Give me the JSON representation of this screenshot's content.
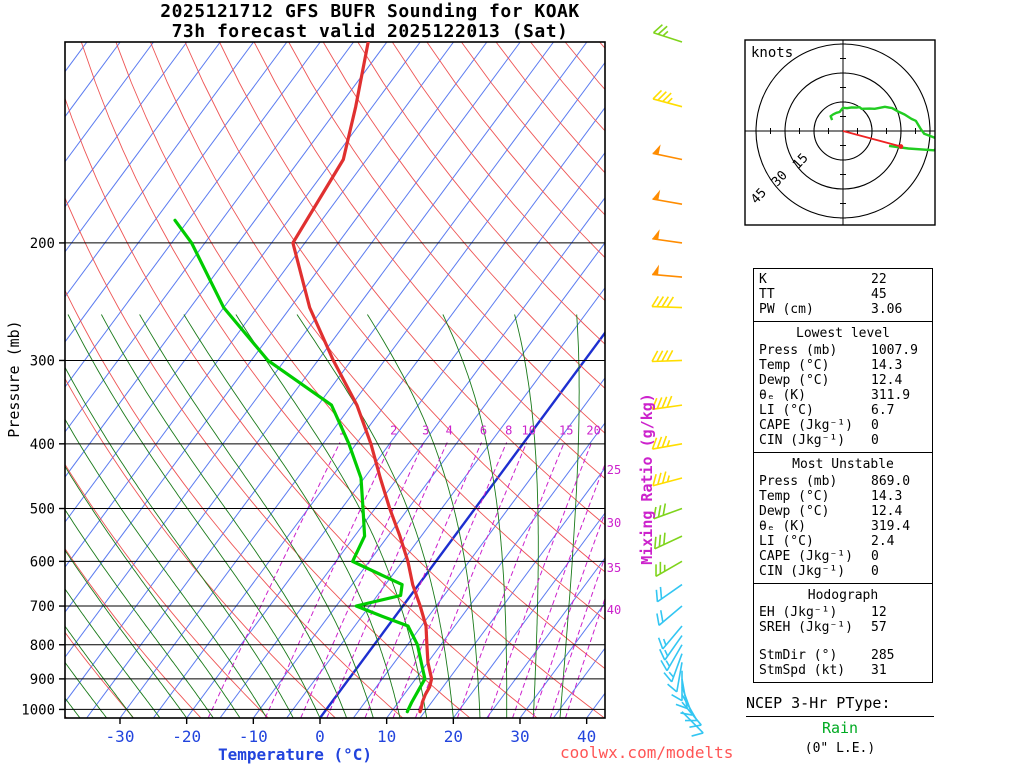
{
  "header": {
    "title_line1": "2025121712 GFS BUFR Sounding for KOAK",
    "title_line2": "73h forecast valid 2025122013 (Sat)"
  },
  "axes": {
    "pressure_label": "Pressure (mb)",
    "temperature_label": "Temperature (°C)",
    "mixing_ratio_label": "Mixing Ratio (g/kg)",
    "pressure_ticks": [
      200,
      300,
      400,
      500,
      600,
      700,
      800,
      900,
      1000
    ],
    "temperature_ticks": [
      -30,
      -20,
      -10,
      0,
      10,
      20,
      30,
      40
    ]
  },
  "chart_data": {
    "type": "line",
    "subtype": "skew-t-log-p",
    "title": "2025121712 GFS BUFR Sounding for KOAK, 73h forecast valid 2025122013 (Sat)",
    "xlabel": "Temperature (°C)",
    "ylabel": "Pressure (mb)",
    "pressure_range": [
      100,
      1030
    ],
    "isotherm_step_c": 5,
    "mixing_ratio_lines": [
      1,
      2,
      3,
      4,
      6,
      8,
      10,
      15,
      20,
      25,
      30,
      35,
      40
    ],
    "series": [
      {
        "name": "temperature",
        "color": "#e03030",
        "points": [
          [
            1008,
            14.3
          ],
          [
            1000,
            14.2
          ],
          [
            975,
            13.6
          ],
          [
            950,
            13.2
          ],
          [
            925,
            13.0
          ],
          [
            900,
            12.4
          ],
          [
            850,
            10.0
          ],
          [
            800,
            7.9
          ],
          [
            750,
            5.7
          ],
          [
            700,
            2.6
          ],
          [
            650,
            -0.9
          ],
          [
            600,
            -4.2
          ],
          [
            550,
            -8.2
          ],
          [
            500,
            -12.8
          ],
          [
            450,
            -17.6
          ],
          [
            400,
            -22.8
          ],
          [
            350,
            -29.2
          ],
          [
            300,
            -37.7
          ],
          [
            250,
            -47.1
          ],
          [
            200,
            -56.8
          ],
          [
            150,
            -58.5
          ],
          [
            125,
            -62.5
          ],
          [
            100,
            -67.8
          ]
        ]
      },
      {
        "name": "dewpoint",
        "color": "#00cc00",
        "points": [
          [
            1008,
            12.4
          ],
          [
            1000,
            12.3
          ],
          [
            975,
            12.0
          ],
          [
            950,
            11.8
          ],
          [
            925,
            11.6
          ],
          [
            900,
            11.4
          ],
          [
            850,
            9.0
          ],
          [
            800,
            6.5
          ],
          [
            750,
            3.0
          ],
          [
            725,
            -2.0
          ],
          [
            700,
            -7.0
          ],
          [
            675,
            -1.5
          ],
          [
            650,
            -2.5
          ],
          [
            600,
            -12.5
          ],
          [
            550,
            -13.5
          ],
          [
            500,
            -16.8
          ],
          [
            450,
            -20.5
          ],
          [
            400,
            -26.1
          ],
          [
            350,
            -33.0
          ],
          [
            300,
            -47.5
          ],
          [
            250,
            -60.0
          ],
          [
            200,
            -72.0
          ],
          [
            185,
            -77.0
          ]
        ]
      }
    ],
    "winds": {
      "barb_units": "knots",
      "levels": [
        [
          1008,
          135,
          8
        ],
        [
          975,
          140,
          10
        ],
        [
          950,
          150,
          10
        ],
        [
          925,
          160,
          10
        ],
        [
          900,
          170,
          10
        ],
        [
          875,
          180,
          12
        ],
        [
          850,
          190,
          12
        ],
        [
          825,
          200,
          13
        ],
        [
          800,
          210,
          14
        ],
        [
          775,
          215,
          15
        ],
        [
          750,
          220,
          15
        ],
        [
          700,
          230,
          18
        ],
        [
          650,
          235,
          20
        ],
        [
          600,
          240,
          25
        ],
        [
          550,
          245,
          28
        ],
        [
          500,
          250,
          30
        ],
        [
          450,
          255,
          33
        ],
        [
          400,
          260,
          36
        ],
        [
          350,
          262,
          38
        ],
        [
          300,
          268,
          40
        ],
        [
          250,
          272,
          42
        ],
        [
          225,
          275,
          50
        ],
        [
          200,
          278,
          52
        ],
        [
          175,
          280,
          50
        ],
        [
          150,
          282,
          48
        ],
        [
          125,
          285,
          35
        ],
        [
          100,
          288,
          25
        ]
      ],
      "color_ramp": [
        {
          "max": 21,
          "color": "#33c6f2"
        },
        {
          "max": 31,
          "color": "#7fd41c"
        },
        {
          "max": 45,
          "color": "#ffdd00"
        },
        {
          "max": 999,
          "color": "#ff8c00"
        }
      ]
    },
    "hodograph": {
      "units_label": "knots",
      "rings_kt": [
        15,
        30,
        45
      ],
      "storm_dir_deg": 285,
      "storm_spd_kt": 31
    }
  },
  "stats": {
    "sections": [
      {
        "header": null,
        "rows": [
          [
            "K",
            "22"
          ],
          [
            "TT",
            "45"
          ],
          [
            "PW (cm)",
            "3.06"
          ]
        ]
      },
      {
        "header": "Lowest level",
        "rows": [
          [
            "Press (mb)",
            "1007.9"
          ],
          [
            "Temp (°C)",
            "14.3"
          ],
          [
            "Dewp (°C)",
            "12.4"
          ],
          [
            "θₑ (K)",
            "311.9"
          ],
          [
            "LI (°C)",
            "6.7"
          ],
          [
            "CAPE (Jkg⁻¹)",
            "0"
          ],
          [
            "CIN (Jkg⁻¹)",
            "0"
          ]
        ]
      },
      {
        "header": "Most Unstable",
        "rows": [
          [
            "Press (mb)",
            "869.0"
          ],
          [
            "Temp (°C)",
            "14.3"
          ],
          [
            "Dewp (°C)",
            "12.4"
          ],
          [
            "θₑ (K)",
            "319.4"
          ],
          [
            "LI (°C)",
            "2.4"
          ],
          [
            "CAPE (Jkg⁻¹)",
            "0"
          ],
          [
            "CIN (Jkg⁻¹)",
            "0"
          ]
        ]
      },
      {
        "header": "Hodograph",
        "rows": [
          [
            "EH (Jkg⁻¹)",
            "12"
          ],
          [
            "SREH (Jkg⁻¹)",
            "57"
          ],
          null,
          [
            "StmDir (°)",
            "285"
          ],
          [
            "StmSpd (kt)",
            "31"
          ]
        ]
      }
    ]
  },
  "ptype": {
    "title": "NCEP 3-Hr PType:",
    "value": "Rain",
    "note": "(0\" L.E.)"
  },
  "footer": {
    "watermark": "coolwx.com/modelts"
  },
  "colors": {
    "isotherm": "#5b7bf0",
    "isotherm_zero": "#1d2fd0",
    "dry_adiabat": "#ee5555",
    "moist_adiabat": "#1a7a1a",
    "mixing_ratio": "#cc22cc",
    "isobar": "#000000",
    "temp_axis": "#2244dd",
    "hodo_trace": "#22cc22",
    "storm_vector": "#ee2222"
  }
}
